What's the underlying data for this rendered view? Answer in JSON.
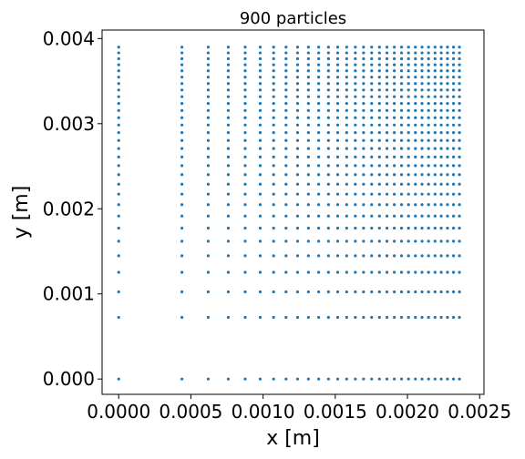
{
  "chart_data": {
    "type": "scatter",
    "title": "900 particles",
    "xlabel": "x [m]",
    "ylabel": "y [m]",
    "xlim": [
      -0.000115,
      0.00253
    ],
    "ylim": [
      -0.00018,
      0.0041
    ],
    "xticks": [
      0.0,
      0.0005,
      0.001,
      0.0015,
      0.002,
      0.0025
    ],
    "xtick_labels": [
      "0.0000",
      "0.0005",
      "0.0010",
      "0.0015",
      "0.0020",
      "0.0025"
    ],
    "yticks": [
      0.0,
      0.001,
      0.002,
      0.003,
      0.004
    ],
    "ytick_labels": [
      "0.000",
      "0.001",
      "0.002",
      "0.003",
      "0.004"
    ],
    "grid": false,
    "legend": "none",
    "marker_color": "#1f77b4",
    "x": [
      0.0,
      0.000438,
      0.00062,
      0.000759,
      0.000876,
      0.00098,
      0.001073,
      0.001159,
      0.001239,
      0.001314,
      0.001385,
      0.001453,
      0.001517,
      0.001579,
      0.001639,
      0.001696,
      0.001752,
      0.001806,
      0.001858,
      0.001909,
      0.001959,
      0.002007,
      0.002055,
      0.002101,
      0.002146,
      0.002191,
      0.002234,
      0.002277,
      0.002319,
      0.00236
    ],
    "y": [
      0.0,
      0.000724,
      0.001024,
      0.001254,
      0.001448,
      0.001619,
      0.001773,
      0.001915,
      0.002048,
      0.002172,
      0.002289,
      0.002401,
      0.002507,
      0.002609,
      0.002708,
      0.002803,
      0.002895,
      0.002984,
      0.00307,
      0.003155,
      0.003237,
      0.003317,
      0.003396,
      0.003472,
      0.003547,
      0.003621,
      0.003692,
      0.003763,
      0.003832,
      0.0039
    ]
  }
}
